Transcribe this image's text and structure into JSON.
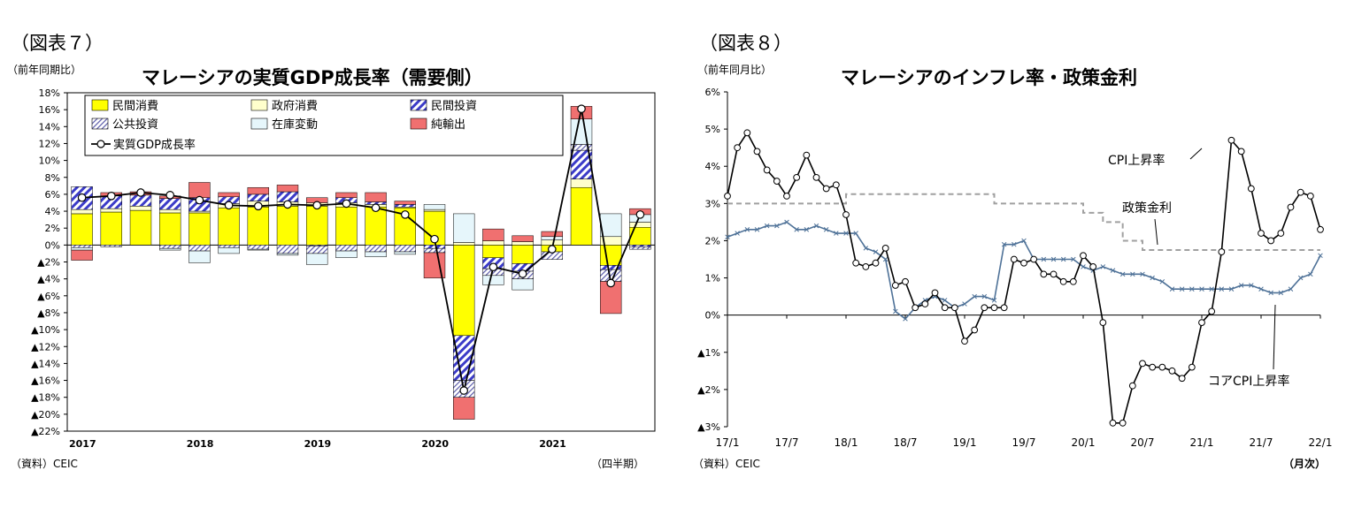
{
  "left": {
    "fig_label": "（図表７）",
    "unit_label": "（前年同期比）",
    "source": "（資料）CEIC",
    "period_label": "（四半期）",
    "colors": {
      "private_consumption": "#ffff00",
      "gov_consumption": "#ffffcc",
      "private_investment": "#4a4ad0",
      "public_investment": "#8a8ad8",
      "inventory": "#e6f6fb",
      "net_exports": "#f07070",
      "line": "#000000"
    },
    "chart_data": {
      "type": "bar",
      "title": "マレーシアの実質GDP成長率（需要側）",
      "ylim": [
        -22,
        18
      ],
      "yticks": [
        "18%",
        "16%",
        "14%",
        "12%",
        "10%",
        "8%",
        "6%",
        "4%",
        "2%",
        "0%",
        "▲2%",
        "▲4%",
        "▲6%",
        "▲8%",
        "▲10%",
        "▲12%",
        "▲14%",
        "▲16%",
        "▲18%",
        "▲20%",
        "▲22%"
      ],
      "x_labels": [
        {
          "label": "2017",
          "index": 0
        },
        {
          "label": "2018",
          "index": 4
        },
        {
          "label": "2019",
          "index": 8
        },
        {
          "label": "2020",
          "index": 12
        },
        {
          "label": "2021",
          "index": 16
        }
      ],
      "categories": [
        "2017Q1",
        "2017Q2",
        "2017Q3",
        "2017Q4",
        "2018Q1",
        "2018Q2",
        "2018Q3",
        "2018Q4",
        "2019Q1",
        "2019Q2",
        "2019Q3",
        "2019Q4",
        "2020Q1",
        "2020Q2",
        "2020Q3",
        "2020Q4",
        "2021Q1",
        "2021Q2",
        "2021Q3",
        "2021Q4"
      ],
      "grid": false,
      "legend_placement": "top",
      "series": [
        {
          "name": "民間消費",
          "key": "private_consumption",
          "values": [
            3.7,
            3.9,
            4.1,
            3.8,
            3.8,
            4.4,
            4.5,
            4.6,
            4.6,
            4.5,
            4.5,
            4.4,
            4.0,
            -10.7,
            -1.5,
            -2.2,
            -0.8,
            6.8,
            -2.4,
            2.1
          ]
        },
        {
          "name": "政府消費",
          "key": "gov_consumption",
          "values": [
            0.5,
            0.4,
            0.5,
            0.4,
            0.2,
            0.5,
            0.7,
            0.5,
            0.4,
            0.5,
            0.3,
            0.1,
            0.2,
            0.3,
            0.5,
            0.4,
            0.6,
            1.0,
            1.0,
            0.6
          ]
        },
        {
          "name": "民間投資",
          "key": "private_investment",
          "values": [
            2.7,
            1.5,
            1.3,
            1.3,
            1.6,
            0.8,
            0.8,
            1.2,
            -0.1,
            0.6,
            0.3,
            0.3,
            -0.4,
            -5.3,
            -1.3,
            -0.9,
            0.0,
            3.4,
            -0.5,
            -0.2
          ]
        },
        {
          "name": "公共投資",
          "key": "public_investment",
          "values": [
            -0.3,
            -0.2,
            0.0,
            -0.4,
            -0.7,
            -0.3,
            -0.5,
            -1.0,
            -0.9,
            -0.7,
            -0.8,
            -0.8,
            -0.5,
            -2.0,
            -0.8,
            -0.9,
            -0.9,
            0.7,
            -1.4,
            -0.3
          ]
        },
        {
          "name": "在庫変動",
          "key": "inventory",
          "values": [
            -0.3,
            0.0,
            0.0,
            -0.2,
            -1.4,
            -0.7,
            -0.1,
            -0.2,
            -1.3,
            -0.8,
            -0.6,
            -0.3,
            0.6,
            3.4,
            -1.1,
            -1.3,
            0.4,
            3.0,
            2.7,
            0.9
          ]
        },
        {
          "name": "純輸出",
          "key": "net_exports",
          "values": [
            -1.2,
            0.4,
            0.4,
            0.3,
            1.8,
            0.5,
            0.8,
            0.8,
            0.6,
            0.6,
            1.1,
            0.4,
            -3.0,
            -2.6,
            1.4,
            0.7,
            0.6,
            1.5,
            -3.8,
            0.7
          ]
        },
        {
          "name": "実質GDP成長率",
          "key": "line",
          "type": "line",
          "values": [
            5.6,
            5.8,
            6.2,
            5.9,
            5.3,
            4.7,
            4.6,
            4.8,
            4.7,
            4.9,
            4.4,
            3.6,
            0.7,
            -17.2,
            -2.6,
            -3.4,
            -0.5,
            16.1,
            -4.5,
            3.6
          ]
        }
      ]
    }
  },
  "right": {
    "fig_label": "（図表８）",
    "unit_label": "（前年同月比）",
    "source": "（資料）CEIC",
    "period_label": "（月次）",
    "colors": {
      "cpi": "#000000",
      "core": "#4f7298",
      "policy": "#a0a0a0"
    },
    "annotations": {
      "cpi": "CPI上昇率",
      "policy": "政策金利",
      "core": "コアCPI上昇率"
    },
    "chart_data": {
      "type": "line",
      "title": "マレーシアのインフレ率・政策金利",
      "ylim": [
        -3,
        6
      ],
      "yticks": [
        "6%",
        "5%",
        "4%",
        "3%",
        "2%",
        "1%",
        "0%",
        "▲1%",
        "▲2%",
        "▲3%"
      ],
      "x_labels": [
        {
          "label": "17/1",
          "index": 0
        },
        {
          "label": "17/7",
          "index": 6
        },
        {
          "label": "18/1",
          "index": 12
        },
        {
          "label": "18/7",
          "index": 18
        },
        {
          "label": "19/1",
          "index": 24
        },
        {
          "label": "19/7",
          "index": 30
        },
        {
          "label": "20/1",
          "index": 36
        },
        {
          "label": "20/7",
          "index": 42
        },
        {
          "label": "21/1",
          "index": 48
        },
        {
          "label": "21/7",
          "index": 54
        },
        {
          "label": "22/1",
          "index": 60
        }
      ],
      "x_start": "2017/1",
      "x_end": "2022/2",
      "grid": false,
      "series": [
        {
          "name": "CPI上昇率",
          "key": "cpi",
          "values": [
            3.2,
            4.5,
            4.9,
            4.4,
            3.9,
            3.6,
            3.2,
            3.7,
            4.3,
            3.7,
            3.4,
            3.5,
            2.7,
            1.4,
            1.3,
            1.4,
            1.8,
            0.8,
            0.9,
            0.2,
            0.3,
            0.6,
            0.2,
            0.2,
            -0.7,
            -0.4,
            0.2,
            0.2,
            0.2,
            1.5,
            1.4,
            1.5,
            1.1,
            1.1,
            0.9,
            0.9,
            1.6,
            1.3,
            -0.2,
            -2.9,
            -2.9,
            -1.9,
            -1.3,
            -1.4,
            -1.4,
            -1.5,
            -1.7,
            -1.4,
            -0.2,
            0.1,
            1.7,
            4.7,
            4.4,
            3.4,
            2.2,
            2.0,
            2.2,
            2.9,
            3.3,
            3.2,
            2.3
          ]
        },
        {
          "name": "コアCPI上昇率",
          "key": "core",
          "values": [
            2.1,
            2.2,
            2.3,
            2.3,
            2.4,
            2.4,
            2.5,
            2.3,
            2.3,
            2.4,
            2.3,
            2.2,
            2.2,
            2.2,
            1.8,
            1.7,
            1.5,
            0.1,
            -0.1,
            0.2,
            0.4,
            0.5,
            0.4,
            0.2,
            0.3,
            0.5,
            0.5,
            0.4,
            1.9,
            1.9,
            2.0,
            1.5,
            1.5,
            1.5,
            1.5,
            1.5,
            1.3,
            1.2,
            1.3,
            1.2,
            1.1,
            1.1,
            1.1,
            1.0,
            0.9,
            0.7,
            0.7,
            0.7,
            0.7,
            0.7,
            0.7,
            0.7,
            0.8,
            0.8,
            0.7,
            0.6,
            0.6,
            0.7,
            1.0,
            1.1,
            1.6
          ]
        },
        {
          "name": "政策金利",
          "key": "policy",
          "values": [
            3.0,
            3.0,
            3.0,
            3.0,
            3.0,
            3.0,
            3.0,
            3.0,
            3.0,
            3.0,
            3.0,
            3.0,
            3.25,
            3.25,
            3.25,
            3.25,
            3.25,
            3.25,
            3.25,
            3.25,
            3.25,
            3.25,
            3.25,
            3.25,
            3.25,
            3.25,
            3.25,
            3.0,
            3.0,
            3.0,
            3.0,
            3.0,
            3.0,
            3.0,
            3.0,
            3.0,
            2.75,
            2.75,
            2.5,
            2.5,
            2.0,
            2.0,
            1.75,
            1.75,
            1.75,
            1.75,
            1.75,
            1.75,
            1.75,
            1.75,
            1.75,
            1.75,
            1.75,
            1.75,
            1.75,
            1.75,
            1.75,
            1.75,
            1.75,
            1.75,
            1.75
          ]
        }
      ]
    }
  }
}
